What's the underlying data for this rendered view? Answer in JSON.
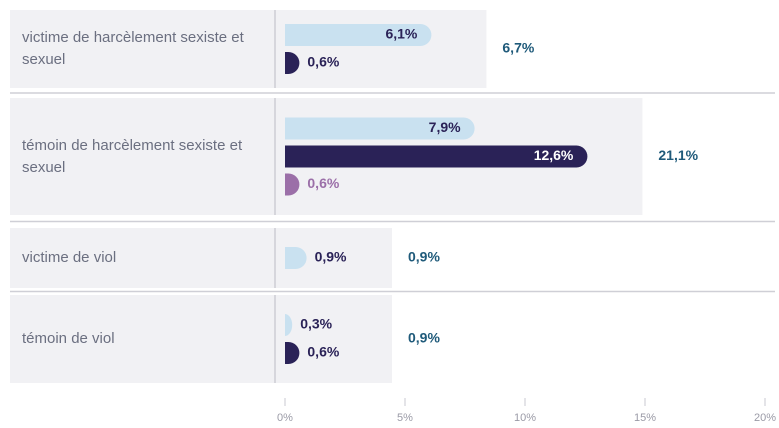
{
  "chart_data": {
    "type": "bar",
    "categories": [
      "victime de harcèlement sexiste et sexuel",
      "témoin de harcèlement sexiste et sexuel",
      "victime de viol",
      "témoin de viol"
    ],
    "series": [
      {
        "color": "#c9e1f0",
        "label_color": "#2a2257",
        "values": [
          6.1,
          7.9,
          0.9,
          0.3
        ],
        "value_labels": [
          "6,1%",
          "7,9%",
          "0,9%",
          "0,3%"
        ]
      },
      {
        "color": "#2a2257",
        "label_color": "#2a2257",
        "values": [
          0.6,
          12.6,
          null,
          0.6
        ],
        "value_labels": [
          "0,6%",
          "12,6%",
          null,
          "0,6%"
        ]
      },
      {
        "color": "#9b6fa8",
        "label_color": "#9b6fa8",
        "values": [
          null,
          0.6,
          null,
          null
        ],
        "value_labels": [
          null,
          "0,6%",
          null,
          null
        ]
      }
    ],
    "totals": [
      6.7,
      21.1,
      0.9,
      0.9
    ],
    "total_labels": [
      "6,7%",
      "21,1%",
      "0,9%",
      "0,9%"
    ],
    "xlim": [
      0,
      20
    ],
    "xticks": [
      {
        "value": 0,
        "label": "0%"
      },
      {
        "value": 5,
        "label": "5%"
      },
      {
        "value": 10,
        "label": "10%"
      },
      {
        "value": 15,
        "label": "15%"
      },
      {
        "value": 20,
        "label": "20%"
      }
    ]
  }
}
